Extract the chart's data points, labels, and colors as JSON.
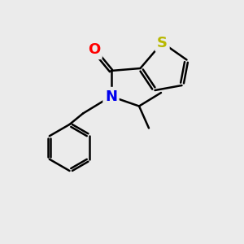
{
  "background_color": "#ebebeb",
  "bond_color": "#000000",
  "bond_width": 1.8,
  "atom_colors": {
    "S": "#b8b800",
    "O": "#ff0000",
    "N": "#0000ee",
    "C": "#000000"
  },
  "font_size": 13,
  "figsize": [
    3.0,
    3.0
  ],
  "dpi": 100
}
